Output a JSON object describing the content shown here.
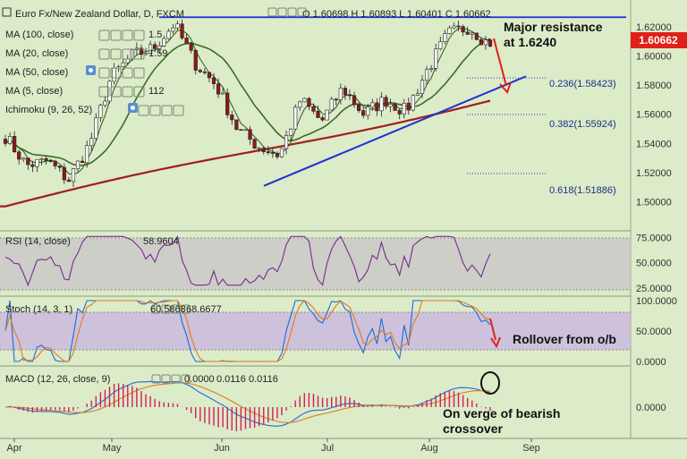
{
  "header": {
    "title": "Euro Fx/New Zealand Dollar, D, FXCM",
    "ohlc": "O 1.60698 H 1.60893 L 1.60401 C 1.60662"
  },
  "legend": {
    "ma100": "MA (100, close)",
    "ma20": "MA (20, close)",
    "ma50": "MA (50, close)",
    "ma5": "MA (5, close)",
    "ichimoku": "Ichimoku (9, 26, 52)",
    "ma100_value": "1.5",
    "ma20_value": "1.59",
    "ma5_value": "112"
  },
  "price_tag": "1.60662",
  "annotations": {
    "resistance_line1": "Major resistance",
    "resistance_line2": "at 1.6240",
    "rollover": "Rollover from o/b",
    "macd_line1": "On verge of bearish",
    "macd_line2": "crossover"
  },
  "fib_levels": [
    {
      "label": "0.236(1.58423)",
      "value": 1.58423
    },
    {
      "label": "0.382(1.55924)",
      "value": 1.55924
    },
    {
      "label": "0.618(1.51886)",
      "value": 1.51886
    }
  ],
  "rsi": {
    "label": "RSI (14, close)",
    "value": "58.9604"
  },
  "stoch": {
    "label": "Stoch (14, 3, 1)",
    "k": "60.5868",
    "d": "68.6677"
  },
  "macd": {
    "label": "MACD (12, 26, close, 9)",
    "hist": "0.0000",
    "macd": "0.0116",
    "signal": "0.0116"
  },
  "colors": {
    "background": "#dcebc8",
    "candle": "#8c1a1a",
    "ma100": "#a01e1e",
    "ma20": "#3d6b25",
    "ma5": "#2f5a1d",
    "trendline": "#1e2fd6",
    "arrow": "#e0201a",
    "rsi_line": "#7a2a8f",
    "stoch_k": "#1e6bd6",
    "stoch_d": "#e07a20",
    "macd_line": "#1e6bd6",
    "signal_line": "#e07a20",
    "hist": "#d0205a",
    "price_tag": "#e0201a"
  },
  "chart_data": [
    {
      "type": "candlestick",
      "title": "Euro Fx/New Zealand Dollar, D, FXCM",
      "x_labels": [
        "Apr",
        "May",
        "Jun",
        "Jul",
        "Aug",
        "Sep"
      ],
      "y_ticks": [
        "1.62000",
        "1.60000",
        "1.58000",
        "1.56000",
        "1.54000",
        "1.52000",
        "1.50000"
      ],
      "ylim": [
        1.49,
        1.626
      ],
      "last_close": 1.60662,
      "resistance": 1.624,
      "close_path": [
        {
          "x": "Apr 03",
          "y": 1.545
        },
        {
          "x": "Apr 10",
          "y": 1.525
        },
        {
          "x": "Apr 18",
          "y": 1.528
        },
        {
          "x": "Apr 25",
          "y": 1.515
        },
        {
          "x": "May 01",
          "y": 1.54
        },
        {
          "x": "May 08",
          "y": 1.585
        },
        {
          "x": "May 15",
          "y": 1.6
        },
        {
          "x": "May 22",
          "y": 1.605
        },
        {
          "x": "May 26",
          "y": 1.622
        },
        {
          "x": "Jun 01",
          "y": 1.595
        },
        {
          "x": "Jun 08",
          "y": 1.58
        },
        {
          "x": "Jun 15",
          "y": 1.55
        },
        {
          "x": "Jun 22",
          "y": 1.538
        },
        {
          "x": "Jun 29",
          "y": 1.532
        },
        {
          "x": "Jul 03",
          "y": 1.57
        },
        {
          "x": "Jul 10",
          "y": 1.555
        },
        {
          "x": "Jul 17",
          "y": 1.578
        },
        {
          "x": "Jul 24",
          "y": 1.56
        },
        {
          "x": "Jul 31",
          "y": 1.57
        },
        {
          "x": "Aug 07",
          "y": 1.562
        },
        {
          "x": "Aug 14",
          "y": 1.59
        },
        {
          "x": "Aug 21",
          "y": 1.615
        },
        {
          "x": "Aug 25",
          "y": 1.62
        },
        {
          "x": "Aug 29",
          "y": 1.607
        }
      ]
    },
    {
      "type": "line",
      "title": "RSI (14, close)",
      "y_ticks": [
        "75.0000",
        "50.0000",
        "25.0000"
      ],
      "ylim": [
        18,
        78
      ],
      "last": 58.9604
    },
    {
      "type": "line",
      "title": "Stoch (14, 3, 1)",
      "y_ticks": [
        "100.0000",
        "50.0000",
        "0.0000"
      ],
      "ylim": [
        0,
        100
      ],
      "series": [
        {
          "name": "%K",
          "last": 60.5868
        },
        {
          "name": "%D",
          "last": 68.6677
        }
      ]
    },
    {
      "type": "line",
      "title": "MACD (12, 26, close, 9)",
      "y_ticks": [
        "0.0000"
      ],
      "series": [
        {
          "name": "MACD",
          "last": 0.0116
        },
        {
          "name": "Signal",
          "last": 0.0116
        }
      ]
    }
  ]
}
